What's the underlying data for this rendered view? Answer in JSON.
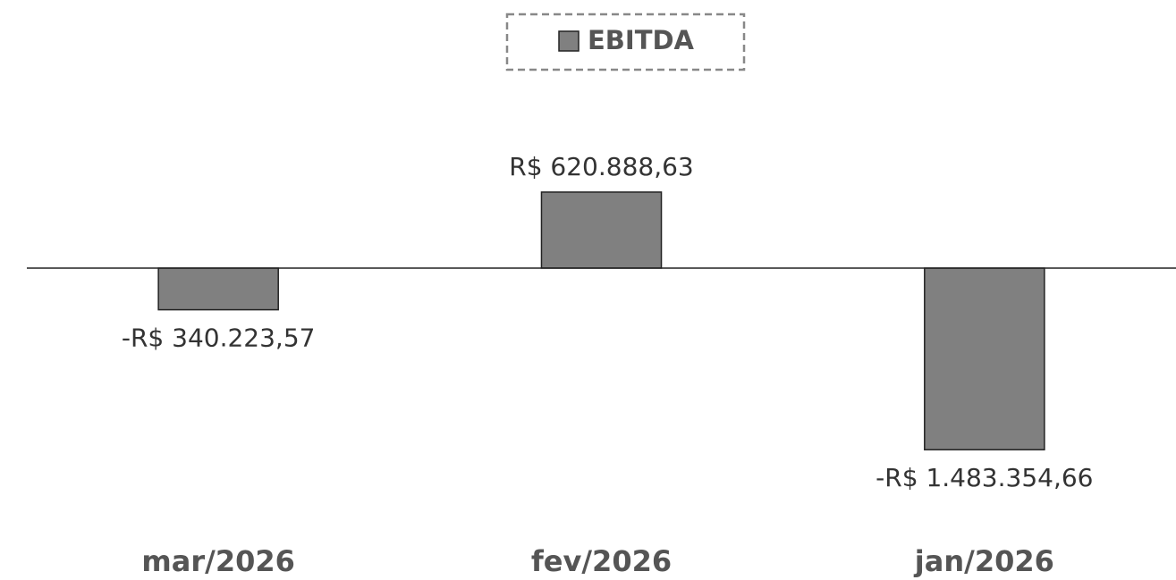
{
  "chart_data": {
    "type": "bar",
    "categories": [
      "mar/2026",
      "fev/2026",
      "jan/2026"
    ],
    "series": [
      {
        "name": "EBITDA",
        "color": "#808080",
        "values": [
          -340223.57,
          620888.63,
          -1483354.66
        ],
        "value_labels": [
          "-R$ 340.223,57",
          "R$ 620.888,63",
          "-R$ 1.483.354,66"
        ]
      }
    ],
    "ylim": [
      -2000000,
      1000000
    ],
    "legend": "top"
  }
}
